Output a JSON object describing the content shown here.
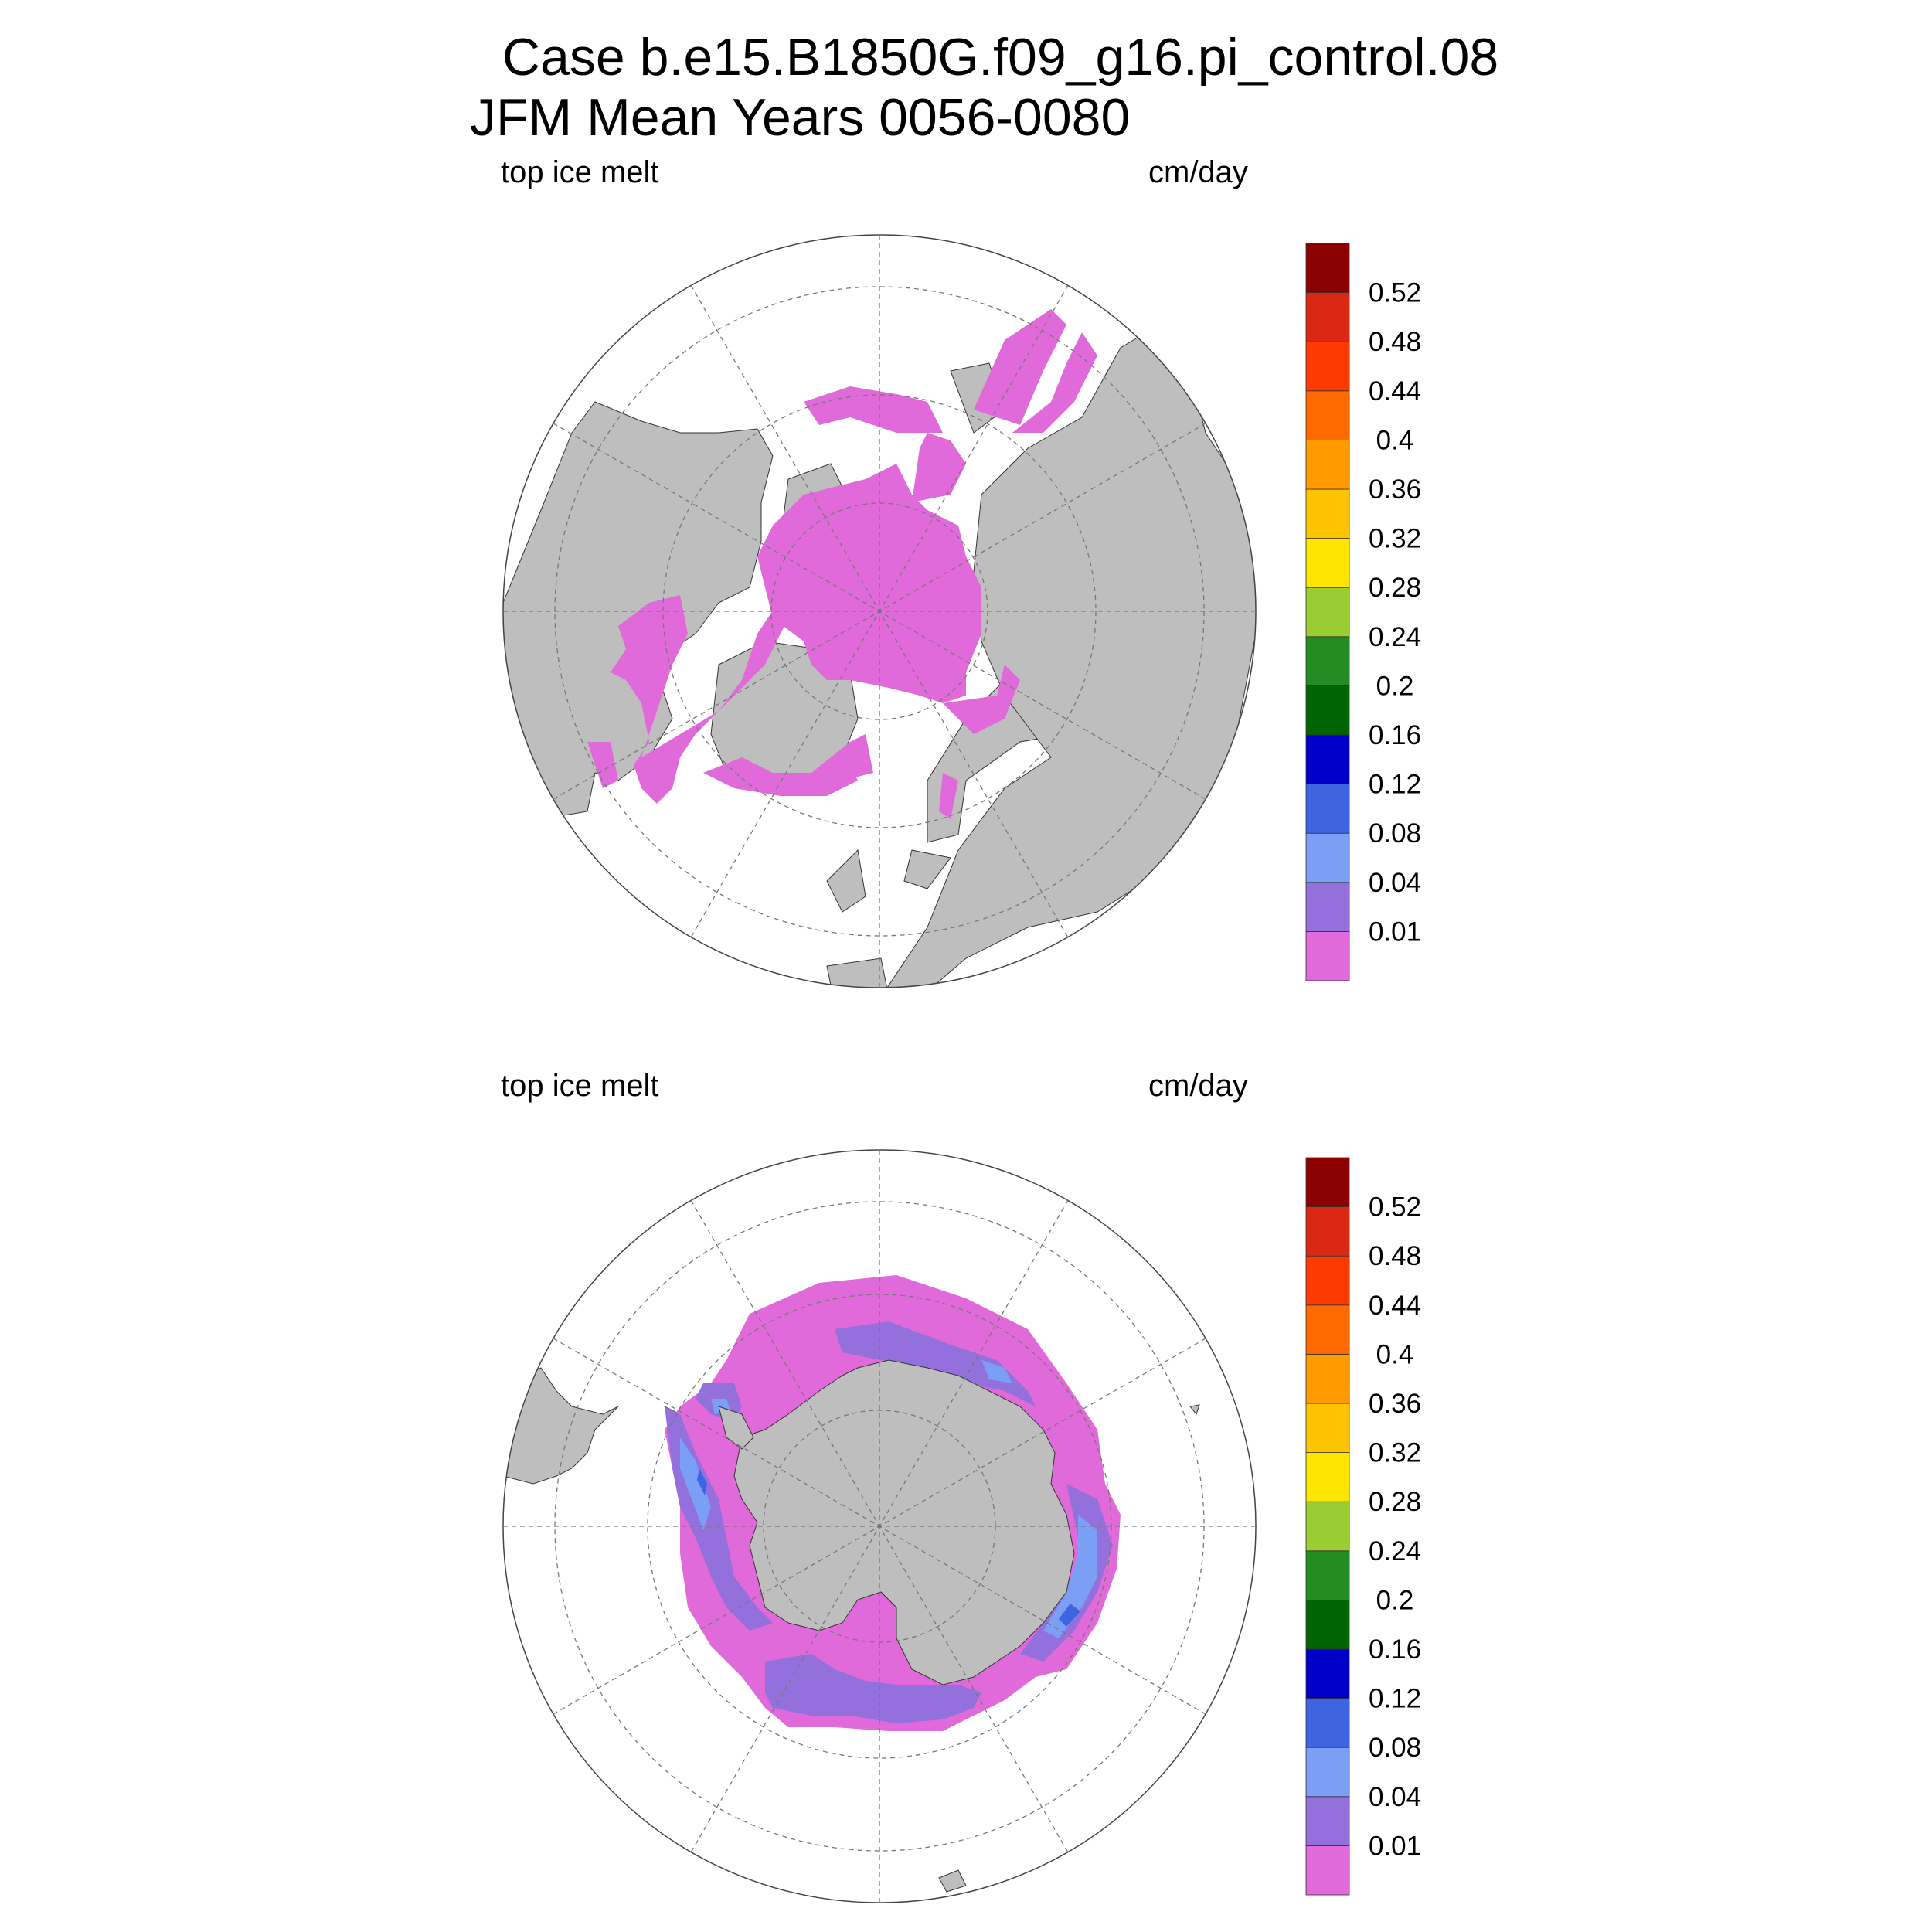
{
  "title": {
    "line1": "Case b.e15.B1850G.f09_g16.pi_control.08",
    "line2": "JFM Mean    Years 0056-0080"
  },
  "panels": [
    {
      "hemisphere": "north",
      "left_label": "top ice melt",
      "right_label": "cm/day",
      "field_colors_present": [
        "#e06ad9"
      ]
    },
    {
      "hemisphere": "south",
      "left_label": "top ice melt",
      "right_label": "cm/day",
      "field_colors_present": [
        "#e06ad9",
        "#9370db",
        "#7b9ff5",
        "#3d64e1"
      ]
    }
  ],
  "colorbar": {
    "levels": [
      "0.01",
      "0.04",
      "0.08",
      "0.12",
      "0.16",
      "0.2",
      "0.24",
      "0.28",
      "0.32",
      "0.36",
      "0.4",
      "0.44",
      "0.48",
      "0.52"
    ],
    "colors": [
      "#e06ad9",
      "#9370db",
      "#7b9ff5",
      "#3d64e1",
      "#0000c8",
      "#006400",
      "#228b22",
      "#9acd32",
      "#ffe400",
      "#ffc400",
      "#ff9a00",
      "#ff6a00",
      "#ff3a00",
      "#da2814",
      "#8b0000"
    ]
  },
  "style": {
    "land_color": "#bebebe",
    "graticule_color": "#777777"
  }
}
